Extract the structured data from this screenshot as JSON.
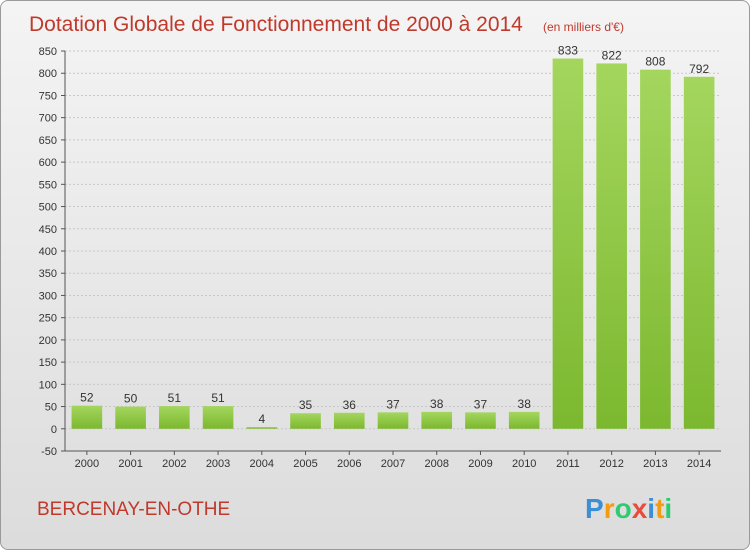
{
  "chart_data": {
    "type": "bar",
    "title": "Dotation Globale de Fonctionnement de 2000 à 2014",
    "unit_label": "(en milliers d'€)",
    "categories": [
      "2000",
      "2001",
      "2002",
      "2003",
      "2004",
      "2005",
      "2006",
      "2007",
      "2008",
      "2009",
      "2010",
      "2011",
      "2012",
      "2013",
      "2014"
    ],
    "values": [
      52,
      50,
      51,
      51,
      4,
      35,
      36,
      37,
      38,
      37,
      38,
      833,
      822,
      808,
      792
    ],
    "ylim": [
      -50,
      850
    ],
    "yticks": [
      -50,
      0,
      50,
      100,
      150,
      200,
      250,
      300,
      350,
      400,
      450,
      500,
      550,
      600,
      650,
      700,
      750,
      800,
      850
    ],
    "grid": true,
    "bar_color": "#7cb82f",
    "bar_color_light": "#a4d65e"
  },
  "commune": "BERCENAY-EN-OTHE",
  "brand": {
    "letters": [
      "P",
      "r",
      "o",
      "x",
      "i",
      "t",
      "i"
    ],
    "colors": [
      "#3a8fd6",
      "#f39c12",
      "#2ecc71",
      "#e74c3c",
      "#3a8fd6",
      "#f39c12",
      "#2ecc71"
    ]
  }
}
